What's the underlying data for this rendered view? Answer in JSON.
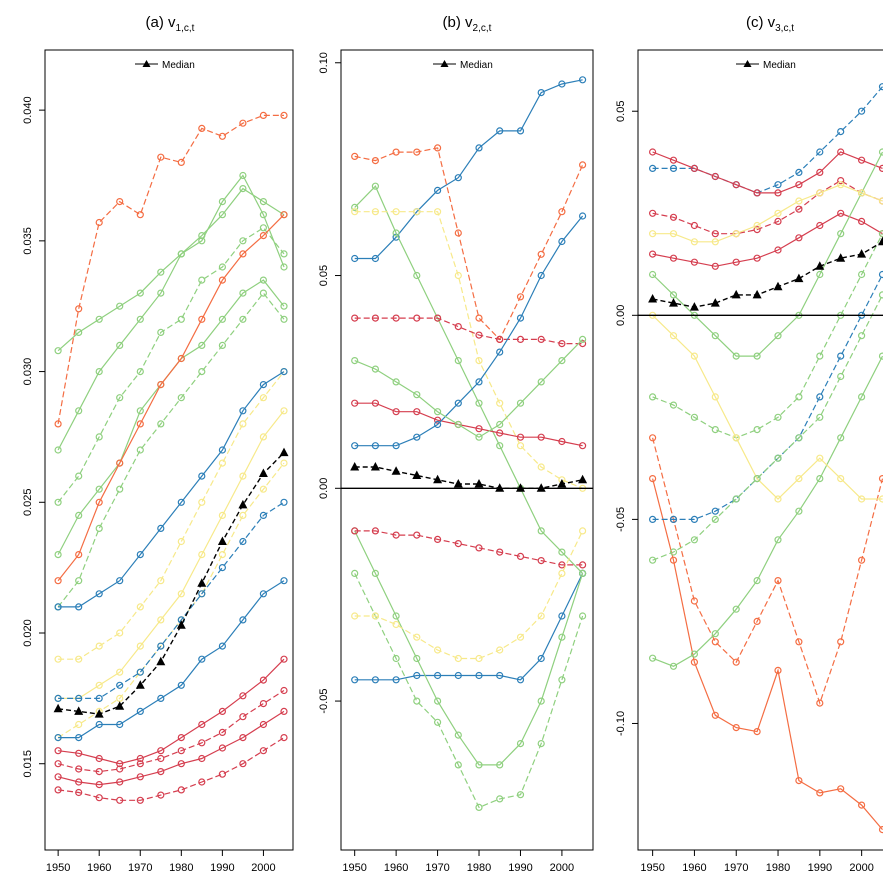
{
  "colors": {
    "green": "#8fd07f",
    "red": "#d53e4f",
    "blue": "#2c7fb8",
    "yellow": "#f7e98a",
    "orange": "#f46d43",
    "median": "#000000"
  },
  "chart_data": [
    {
      "type": "line",
      "title": "(a) v",
      "title_sub": "1,c,t",
      "legend": {
        "label": "Median",
        "placement": "top-center"
      },
      "x": [
        1950,
        1955,
        1960,
        1965,
        1970,
        1975,
        1980,
        1985,
        1990,
        1995,
        2000,
        2005
      ],
      "xticks": [
        "1950",
        "1960",
        "1970",
        "1980",
        "1990",
        "2000"
      ],
      "yticks": [
        "0.015",
        "0.020",
        "0.025",
        "0.030",
        "0.035",
        "0.040"
      ],
      "ylim": [
        0.0117,
        0.0423
      ],
      "median": [
        0.0171,
        0.017,
        0.0169,
        0.0172,
        0.018,
        0.0189,
        0.0203,
        0.0219,
        0.0235,
        0.0249,
        0.0261,
        0.0269
      ],
      "hline": null,
      "series": [
        {
          "color": "green",
          "values": [
            0.027,
            0.0285,
            0.03,
            0.031,
            0.032,
            0.033,
            0.0345,
            0.035,
            0.0365,
            0.0375,
            0.036,
            0.034
          ]
        },
        {
          "color": "green",
          "values": [
            0.025,
            0.026,
            0.0275,
            0.029,
            0.03,
            0.0315,
            0.032,
            0.0335,
            0.034,
            0.035,
            0.0355,
            0.0345
          ]
        },
        {
          "color": "green",
          "values": [
            0.023,
            0.0245,
            0.0255,
            0.0265,
            0.0285,
            0.0295,
            0.0305,
            0.031,
            0.032,
            0.033,
            0.0335,
            0.0325
          ]
        },
        {
          "color": "green",
          "values": [
            0.021,
            0.022,
            0.024,
            0.0255,
            0.027,
            0.028,
            0.029,
            0.03,
            0.031,
            0.032,
            0.033,
            0.032
          ]
        },
        {
          "color": "green",
          "values": [
            0.0308,
            0.0315,
            0.032,
            0.0325,
            0.033,
            0.0338,
            0.0345,
            0.0352,
            0.036,
            0.037,
            0.0365,
            0.036
          ]
        },
        {
          "color": "yellow",
          "values": [
            0.019,
            0.019,
            0.0195,
            0.02,
            0.021,
            0.022,
            0.0235,
            0.025,
            0.0265,
            0.028,
            0.029,
            0.03
          ]
        },
        {
          "color": "yellow",
          "values": [
            0.0175,
            0.0175,
            0.018,
            0.0185,
            0.0195,
            0.0205,
            0.0215,
            0.023,
            0.0245,
            0.026,
            0.0275,
            0.0285
          ]
        },
        {
          "color": "yellow",
          "values": [
            0.016,
            0.0165,
            0.017,
            0.0175,
            0.0185,
            0.0195,
            0.0205,
            0.0215,
            0.023,
            0.0245,
            0.0255,
            0.0265
          ]
        },
        {
          "color": "blue",
          "values": [
            0.021,
            0.021,
            0.0215,
            0.022,
            0.023,
            0.024,
            0.025,
            0.026,
            0.027,
            0.0285,
            0.0295,
            0.03
          ]
        },
        {
          "color": "blue",
          "values": [
            0.0175,
            0.0175,
            0.0175,
            0.018,
            0.0185,
            0.0195,
            0.0205,
            0.0215,
            0.0225,
            0.0235,
            0.0245,
            0.025
          ]
        },
        {
          "color": "blue",
          "values": [
            0.016,
            0.016,
            0.0165,
            0.0165,
            0.017,
            0.0175,
            0.018,
            0.019,
            0.0195,
            0.0205,
            0.0215,
            0.022
          ]
        },
        {
          "color": "red",
          "values": [
            0.015,
            0.0148,
            0.0147,
            0.0148,
            0.015,
            0.0152,
            0.0155,
            0.0158,
            0.0162,
            0.0168,
            0.0173,
            0.0178
          ]
        },
        {
          "color": "red",
          "values": [
            0.0145,
            0.0143,
            0.0142,
            0.0143,
            0.0145,
            0.0147,
            0.015,
            0.0152,
            0.0156,
            0.016,
            0.0165,
            0.017
          ]
        },
        {
          "color": "red",
          "values": [
            0.014,
            0.0139,
            0.0137,
            0.0136,
            0.0136,
            0.0138,
            0.014,
            0.0143,
            0.0146,
            0.015,
            0.0155,
            0.016
          ]
        },
        {
          "color": "red",
          "values": [
            0.0155,
            0.0154,
            0.0152,
            0.015,
            0.0152,
            0.0155,
            0.016,
            0.0165,
            0.017,
            0.0176,
            0.0182,
            0.019
          ]
        },
        {
          "color": "orange",
          "values": [
            0.028,
            0.0324,
            0.0357,
            0.0365,
            0.036,
            0.0382,
            0.038,
            0.0393,
            0.039,
            0.0395,
            0.0398,
            0.0398
          ]
        },
        {
          "color": "orange",
          "values": [
            0.022,
            0.023,
            0.025,
            0.0265,
            0.028,
            0.0295,
            0.0305,
            0.032,
            0.0335,
            0.0345,
            0.0352,
            0.036
          ]
        }
      ]
    },
    {
      "type": "line",
      "title": "(b) v",
      "title_sub": "2,c,t",
      "legend": {
        "label": "Median",
        "placement": "top-center"
      },
      "x": [
        1950,
        1955,
        1960,
        1965,
        1970,
        1975,
        1980,
        1985,
        1990,
        1995,
        2000,
        2005
      ],
      "xticks": [
        "1950",
        "1960",
        "1970",
        "1980",
        "1990",
        "2000"
      ],
      "yticks": [
        "-0.05",
        "0.00",
        "0.05",
        "0.10"
      ],
      "ylim": [
        -0.085,
        0.103
      ],
      "median": [
        0.005,
        0.005,
        0.004,
        0.003,
        0.002,
        0.001,
        0.001,
        0.0,
        0.0,
        0.0,
        0.001,
        0.002
      ],
      "hline": 0,
      "series": [
        {
          "color": "blue",
          "values": [
            0.054,
            0.054,
            0.059,
            0.065,
            0.07,
            0.073,
            0.08,
            0.084,
            0.084,
            0.093,
            0.095,
            0.096
          ]
        },
        {
          "color": "orange",
          "values": [
            0.078,
            0.077,
            0.079,
            0.079,
            0.08,
            0.06,
            0.04,
            0.035,
            0.045,
            0.055,
            0.065,
            0.076
          ]
        },
        {
          "color": "green",
          "values": [
            0.066,
            0.071,
            0.06,
            0.05,
            0.04,
            0.03,
            0.02,
            0.01,
            0.0,
            -0.01,
            -0.015,
            -0.02
          ]
        },
        {
          "color": "yellow",
          "values": [
            0.065,
            0.065,
            0.065,
            0.065,
            0.065,
            0.05,
            0.03,
            0.02,
            0.01,
            0.005,
            0.002,
            0.0
          ]
        },
        {
          "color": "blue",
          "values": [
            -0.045,
            -0.045,
            -0.045,
            -0.044,
            -0.044,
            -0.044,
            -0.044,
            -0.044,
            -0.045,
            -0.04,
            -0.03,
            -0.02
          ]
        },
        {
          "color": "green",
          "values": [
            -0.02,
            -0.03,
            -0.04,
            -0.05,
            -0.055,
            -0.065,
            -0.075,
            -0.073,
            -0.072,
            -0.06,
            -0.045,
            -0.03
          ]
        },
        {
          "color": "green",
          "values": [
            -0.01,
            -0.02,
            -0.03,
            -0.04,
            -0.05,
            -0.058,
            -0.065,
            -0.065,
            -0.06,
            -0.05,
            -0.035,
            -0.02
          ]
        },
        {
          "color": "red",
          "values": [
            0.04,
            0.04,
            0.04,
            0.04,
            0.04,
            0.038,
            0.036,
            0.035,
            0.035,
            0.035,
            0.034,
            0.034
          ]
        },
        {
          "color": "red",
          "values": [
            0.02,
            0.02,
            0.018,
            0.018,
            0.016,
            0.015,
            0.014,
            0.013,
            0.012,
            0.012,
            0.011,
            0.01
          ]
        },
        {
          "color": "red",
          "values": [
            -0.01,
            -0.01,
            -0.011,
            -0.011,
            -0.012,
            -0.013,
            -0.014,
            -0.015,
            -0.016,
            -0.017,
            -0.018,
            -0.018
          ]
        },
        {
          "color": "blue",
          "values": [
            0.01,
            0.01,
            0.01,
            0.012,
            0.015,
            0.02,
            0.025,
            0.032,
            0.04,
            0.05,
            0.058,
            0.064
          ]
        },
        {
          "color": "yellow",
          "values": [
            -0.03,
            -0.03,
            -0.032,
            -0.035,
            -0.038,
            -0.04,
            -0.04,
            -0.038,
            -0.035,
            -0.03,
            -0.02,
            -0.01
          ]
        },
        {
          "color": "green",
          "values": [
            0.03,
            0.028,
            0.025,
            0.022,
            0.018,
            0.015,
            0.012,
            0.015,
            0.02,
            0.025,
            0.03,
            0.035
          ]
        }
      ]
    },
    {
      "type": "line",
      "title": "(c) v",
      "title_sub": "3,c,t",
      "legend": {
        "label": "Median",
        "placement": "top-center"
      },
      "x": [
        1950,
        1955,
        1960,
        1965,
        1970,
        1975,
        1980,
        1985,
        1990,
        1995,
        2000,
        2005
      ],
      "xticks": [
        "1950",
        "1960",
        "1970",
        "1980",
        "1990",
        "2000"
      ],
      "yticks": [
        "-0.10",
        "-0.05",
        "0.00",
        "0.05"
      ],
      "ylim": [
        -0.131,
        0.065
      ],
      "median": [
        0.004,
        0.003,
        0.002,
        0.003,
        0.005,
        0.005,
        0.007,
        0.009,
        0.012,
        0.014,
        0.015,
        0.018
      ],
      "hline": 0,
      "series": [
        {
          "color": "orange",
          "values": [
            -0.04,
            -0.06,
            -0.085,
            -0.098,
            -0.101,
            -0.102,
            -0.087,
            -0.114,
            -0.117,
            -0.116,
            -0.12,
            -0.126
          ]
        },
        {
          "color": "orange",
          "values": [
            -0.03,
            -0.05,
            -0.07,
            -0.08,
            -0.085,
            -0.075,
            -0.065,
            -0.08,
            -0.095,
            -0.08,
            -0.06,
            -0.04
          ]
        },
        {
          "color": "green",
          "values": [
            -0.084,
            -0.086,
            -0.083,
            -0.078,
            -0.072,
            -0.065,
            -0.055,
            -0.048,
            -0.04,
            -0.03,
            -0.02,
            -0.01
          ]
        },
        {
          "color": "blue",
          "values": [
            0.036,
            0.036,
            0.036,
            0.034,
            0.032,
            0.03,
            0.032,
            0.035,
            0.04,
            0.045,
            0.05,
            0.056
          ]
        },
        {
          "color": "red",
          "values": [
            0.04,
            0.038,
            0.036,
            0.034,
            0.032,
            0.03,
            0.03,
            0.032,
            0.035,
            0.04,
            0.038,
            0.036
          ]
        },
        {
          "color": "red",
          "values": [
            0.025,
            0.024,
            0.022,
            0.02,
            0.02,
            0.021,
            0.023,
            0.026,
            0.03,
            0.033,
            0.03,
            0.028
          ]
        },
        {
          "color": "red",
          "values": [
            0.015,
            0.014,
            0.013,
            0.012,
            0.013,
            0.014,
            0.016,
            0.019,
            0.022,
            0.025,
            0.023,
            0.02
          ]
        },
        {
          "color": "green",
          "values": [
            -0.02,
            -0.022,
            -0.025,
            -0.028,
            -0.03,
            -0.028,
            -0.025,
            -0.02,
            -0.01,
            0.0,
            0.01,
            0.02
          ]
        },
        {
          "color": "green",
          "values": [
            0.01,
            0.005,
            0.0,
            -0.005,
            -0.01,
            -0.01,
            -0.005,
            0.0,
            0.01,
            0.02,
            0.03,
            0.04
          ]
        },
        {
          "color": "blue",
          "values": [
            -0.05,
            -0.05,
            -0.05,
            -0.048,
            -0.045,
            -0.04,
            -0.035,
            -0.03,
            -0.02,
            -0.01,
            0.0,
            0.01
          ]
        },
        {
          "color": "yellow",
          "values": [
            0.0,
            -0.005,
            -0.01,
            -0.02,
            -0.03,
            -0.04,
            -0.045,
            -0.04,
            -0.035,
            -0.04,
            -0.045,
            -0.045
          ]
        },
        {
          "color": "green",
          "values": [
            -0.06,
            -0.058,
            -0.055,
            -0.05,
            -0.045,
            -0.04,
            -0.035,
            -0.03,
            -0.025,
            -0.015,
            -0.005,
            0.005
          ]
        },
        {
          "color": "yellow",
          "values": [
            0.02,
            0.02,
            0.018,
            0.018,
            0.02,
            0.022,
            0.025,
            0.028,
            0.03,
            0.032,
            0.03,
            0.028
          ]
        }
      ]
    }
  ]
}
